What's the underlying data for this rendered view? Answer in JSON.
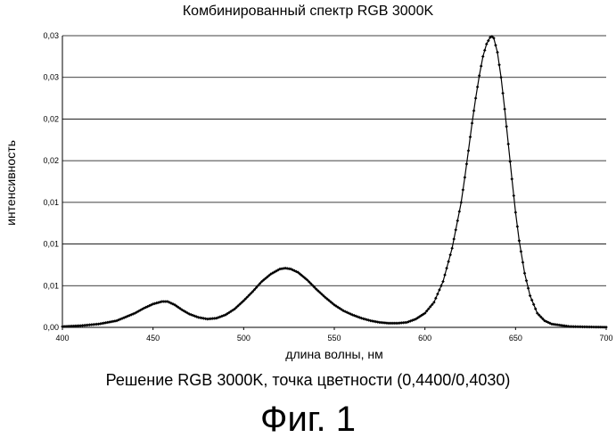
{
  "chart_data": {
    "type": "scatter",
    "title": "Комбинированный спектр RGB 3000K",
    "xlabel": "длина волны, нм",
    "ylabel": "интенсивность",
    "xlim": [
      400,
      700
    ],
    "ylim": [
      0,
      0.035
    ],
    "grid": true,
    "x_ticks": [
      "400",
      "450",
      "500",
      "550",
      "600",
      "650",
      "700"
    ],
    "y_ticks": [
      "0,00",
      "0,01",
      "0,01",
      "0,01",
      "0,02",
      "0,02",
      "0,03",
      "0,03"
    ],
    "series": [
      {
        "x": [
          400,
          410,
          420,
          430,
          440,
          445,
          450,
          455,
          458,
          462,
          466,
          470,
          475,
          480,
          485,
          490,
          495,
          500,
          505,
          510,
          515,
          520,
          523,
          526,
          530,
          535,
          540,
          545,
          550,
          555,
          560,
          565,
          570,
          575,
          580,
          585,
          590,
          595,
          600,
          605,
          610,
          615,
          620,
          622,
          624,
          626,
          628,
          630,
          632,
          634,
          636,
          637,
          638,
          640,
          642,
          644,
          646,
          648,
          650,
          652,
          655,
          658,
          662,
          666,
          670,
          680,
          690,
          700
        ],
        "y": [
          0.0001,
          0.0002,
          0.0004,
          0.0008,
          0.0017,
          0.0023,
          0.0028,
          0.0031,
          0.0031,
          0.0027,
          0.0021,
          0.0016,
          0.0012,
          0.001,
          0.0011,
          0.0015,
          0.0022,
          0.0032,
          0.0043,
          0.0055,
          0.0064,
          0.007,
          0.0071,
          0.007,
          0.0066,
          0.0057,
          0.0046,
          0.0036,
          0.0027,
          0.002,
          0.0015,
          0.0011,
          0.0008,
          0.0006,
          0.0005,
          0.0005,
          0.0006,
          0.001,
          0.0017,
          0.003,
          0.0055,
          0.0095,
          0.015,
          0.018,
          0.0212,
          0.0245,
          0.0275,
          0.0302,
          0.0325,
          0.034,
          0.0348,
          0.0349,
          0.0347,
          0.033,
          0.03,
          0.0262,
          0.022,
          0.0178,
          0.0138,
          0.0104,
          0.0065,
          0.0038,
          0.0017,
          0.0008,
          0.0004,
          0.0001,
          5e-05,
          2e-05
        ]
      }
    ]
  },
  "caption": "Решение RGB 3000K, точка цветности (0,4400/0,4030)",
  "figure_label": "Фиг. 1",
  "colors": {
    "line": "#000000",
    "grid": "#000000"
  }
}
